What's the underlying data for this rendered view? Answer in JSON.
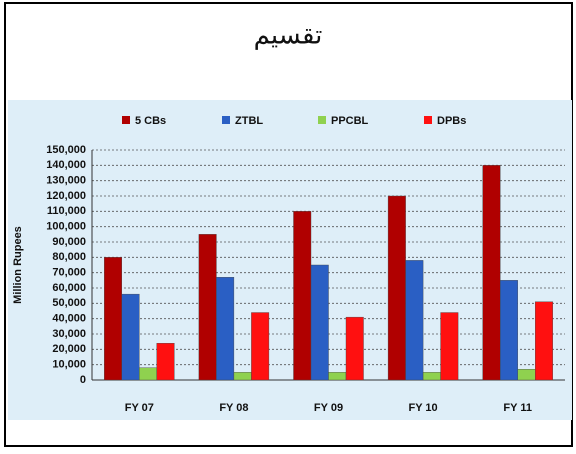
{
  "chart_data": {
    "type": "bar",
    "title": "تقسیم",
    "y_label": "Million Rupees",
    "categories": [
      "FY 07",
      "FY 08",
      "FY 09",
      "FY 10",
      "FY 11"
    ],
    "series": [
      {
        "name": "5 CBs",
        "color": "#b00000",
        "values": [
          80000,
          95000,
          110000,
          120000,
          140000
        ]
      },
      {
        "name": "ZTBL",
        "color": "#2a5fc4",
        "values": [
          56000,
          67000,
          75000,
          78000,
          65000
        ]
      },
      {
        "name": "PPCBL",
        "color": "#8fd14f",
        "values": [
          8000,
          5000,
          5000,
          5000,
          7000
        ]
      },
      {
        "name": "DPBs",
        "color": "#ff1010",
        "values": [
          24000,
          44000,
          41000,
          44000,
          51000
        ]
      }
    ],
    "ylim": [
      0,
      150000
    ],
    "yticks": [
      0,
      {
        "value": 10000,
        "label": "10,000"
      },
      {
        "value": 20000,
        "label": "20,000"
      },
      {
        "value": 30000,
        "label": "30,000"
      },
      {
        "value": 40000,
        "label": "40,000"
      },
      {
        "value": 50000,
        "label": "50,000"
      },
      {
        "value": 60000,
        "label": "60,000"
      },
      {
        "value": 70000,
        "label": "70,000"
      },
      {
        "value": 80000,
        "label": "80,000"
      },
      {
        "value": 90000,
        "label": "90,000"
      },
      {
        "value": 100000,
        "label": "100,000"
      },
      {
        "value": 110000,
        "label": "110,000"
      },
      {
        "value": 120000,
        "label": "120,000"
      },
      {
        "value": 130000,
        "label": "130,000"
      },
      {
        "value": 140000,
        "label": "140,000"
      },
      {
        "value": 150000,
        "label": "150,000"
      }
    ],
    "grid": true,
    "legend": "top"
  }
}
